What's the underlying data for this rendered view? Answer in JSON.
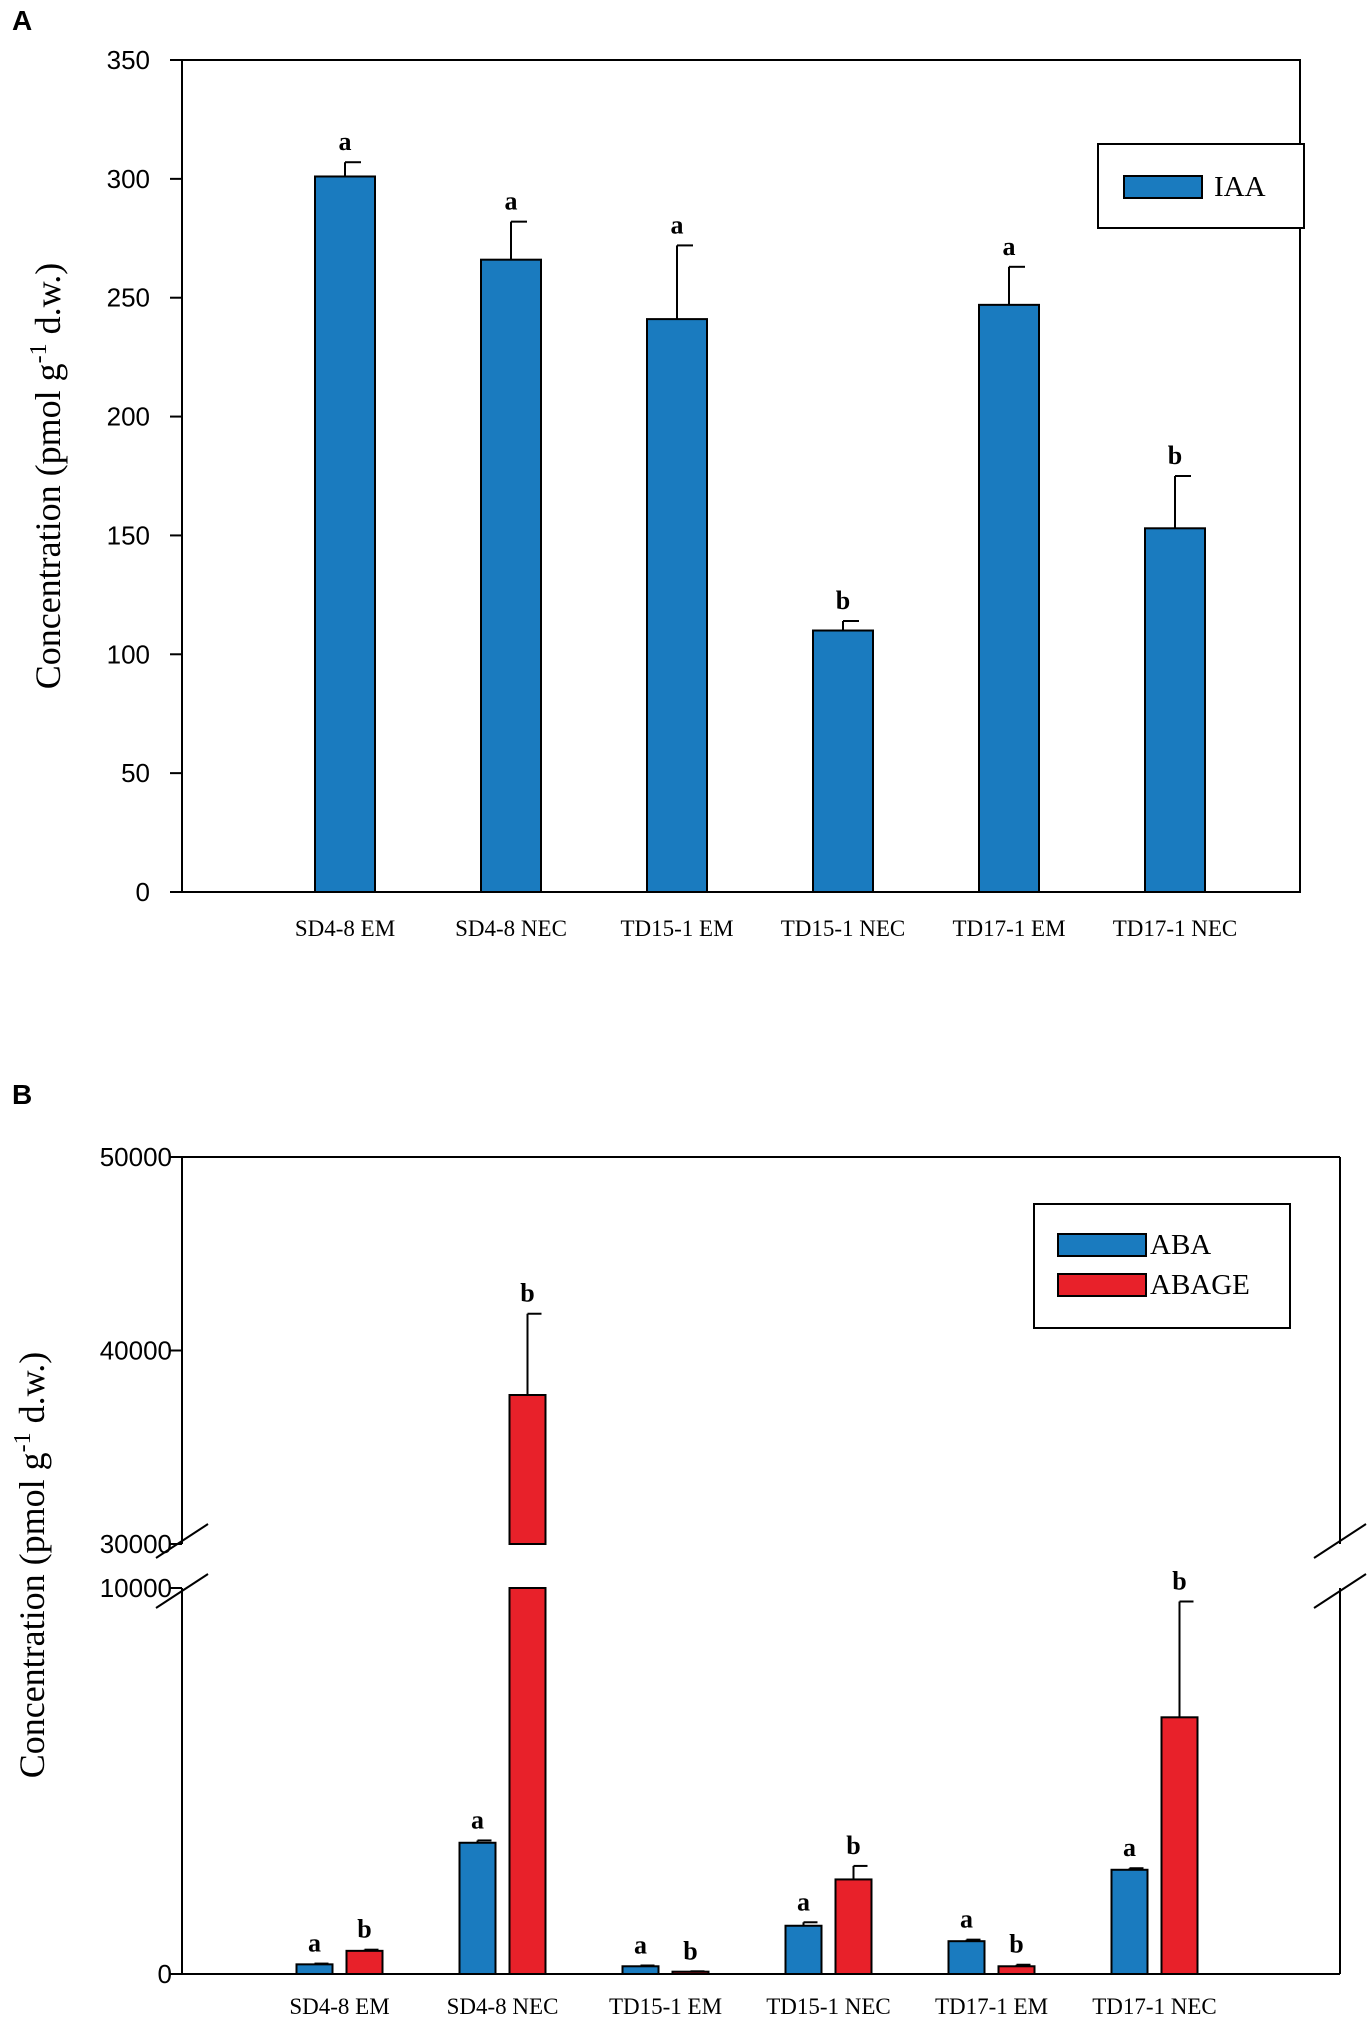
{
  "chart_data": [
    {
      "panel": "A",
      "type": "bar",
      "xlabel": "",
      "ylabel_main": "Concentration (pmol g",
      "ylabel_sup": "-1",
      "ylabel_tail": " d.w.)",
      "ylim": [
        0,
        350
      ],
      "yticks": [
        0,
        50,
        100,
        150,
        200,
        250,
        300,
        350
      ],
      "categories": [
        "SD4-8 EM",
        "SD4-8 NEC",
        "TD15-1 EM",
        "TD15-1 NEC",
        "TD17-1 EM",
        "TD17-1 NEC"
      ],
      "series": [
        {
          "name": "IAA",
          "color": "#1a7bbf",
          "values": [
            301,
            266,
            241,
            110,
            247,
            153
          ],
          "errors": [
            6,
            16,
            31,
            4,
            16,
            22
          ],
          "labels": [
            "a",
            "a",
            "a",
            "b",
            "a",
            "b"
          ]
        }
      ],
      "legend_position": "top-right"
    },
    {
      "panel": "B",
      "type": "bar",
      "xlabel": "",
      "ylabel_main": "Concentration (pmol g",
      "ylabel_sup": "-1",
      "ylabel_tail": " d.w.)",
      "broken_axis": true,
      "upper_range": [
        30000,
        50000
      ],
      "upper_ticks": [
        30000,
        40000,
        50000
      ],
      "lower_range": [
        0,
        10000
      ],
      "lower_ticks": [
        0,
        10000
      ],
      "categories": [
        "SD4-8 EM",
        "SD4-8 NEC",
        "TD15-1 EM",
        "TD15-1 NEC",
        "TD17-1 EM",
        "TD17-1 NEC"
      ],
      "series": [
        {
          "name": "ABA",
          "color": "#1a7bbf",
          "values": [
            250,
            3400,
            200,
            1250,
            850,
            2700
          ],
          "errors": [
            20,
            60,
            20,
            90,
            40,
            40
          ],
          "labels": [
            "a",
            "a",
            "a",
            "a",
            "a",
            "a"
          ]
        },
        {
          "name": "ABAGE",
          "color": "#e8212a",
          "values": [
            600,
            37700,
            60,
            2450,
            200,
            6650
          ],
          "errors": [
            30,
            4200,
            10,
            350,
            40,
            3000
          ],
          "labels": [
            "b",
            "b",
            "b",
            "b",
            "b",
            "b"
          ]
        }
      ],
      "legend_position": "top-right"
    }
  ]
}
